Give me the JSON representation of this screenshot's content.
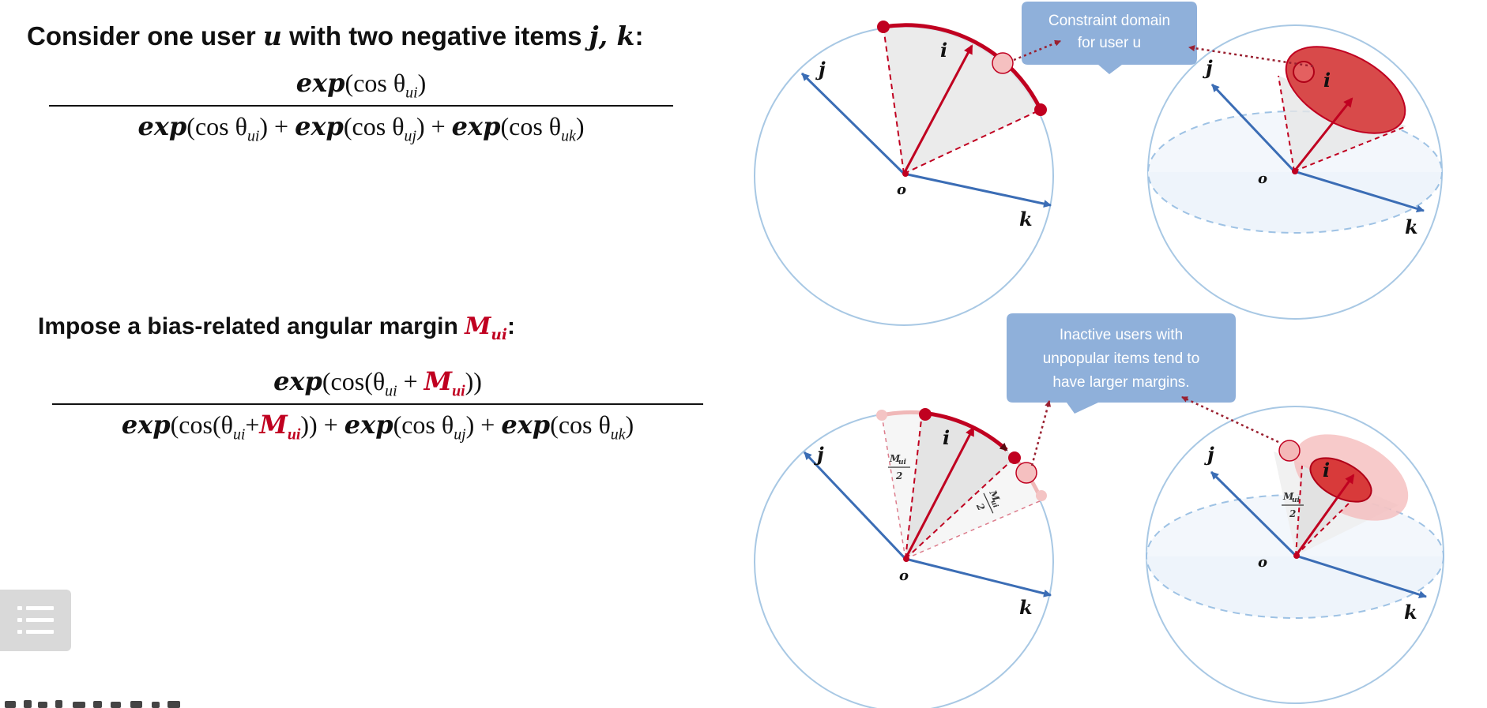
{
  "heading1": {
    "prefix": "Consider one user ",
    "var_user": "u",
    "middle": " with two negative items ",
    "var_items": "j, k",
    "suffix": ":"
  },
  "formula1": {
    "numerator": {
      "fn": "exp",
      "text": "(cos θ",
      "sub": "ui",
      "close": ")"
    },
    "denominator": [
      {
        "fn": "exp",
        "text": "(cos θ",
        "sub": "ui",
        "close": ")"
      },
      {
        "op": " + "
      },
      {
        "fn": "exp",
        "text": "(cos θ",
        "sub": "uj",
        "close": ")"
      },
      {
        "op": " + "
      },
      {
        "fn": "exp",
        "text": "(cos θ",
        "sub": "uk",
        "close": ")"
      }
    ]
  },
  "heading2": {
    "prefix": "Impose a bias-related angular margin ",
    "margin_symbol": "M",
    "margin_sub": "ui",
    "suffix": ":"
  },
  "formula2": {
    "numerator": {
      "fn": "exp",
      "open": "(cos(θ",
      "sub": "ui",
      "plus": " + ",
      "margin": "M",
      "margin_sub": "ui",
      "close": "))"
    },
    "denominator": [
      {
        "fn": "exp",
        "open": "(cos(θ",
        "sub": "ui",
        "plus": "+",
        "margin": "M",
        "margin_sub": "ui",
        "close": "))"
      },
      {
        "op": " + "
      },
      {
        "fn": "exp",
        "text": "(cos θ",
        "sub": "uj",
        "close": ")"
      },
      {
        "op": " + "
      },
      {
        "fn": "exp",
        "text": "(cos θ",
        "sub": "uk",
        "close": ")"
      }
    ]
  },
  "diagrams": {
    "callout_top": [
      "Constraint domain",
      "for user u"
    ],
    "callout_bottom": [
      "Inactive users with",
      "unpopular items tend to",
      "have larger margins."
    ],
    "vector_labels": {
      "i": "i",
      "j": "j",
      "k": "k",
      "origin": "o"
    },
    "margin_label": {
      "symbol": "M",
      "sub": "ui",
      "divisor": "2"
    }
  },
  "colors": {
    "red": "#c00020",
    "blue": "#3b6db5",
    "sphere_outline": "#a8c8e4",
    "callout_fill": "#8fb0da"
  },
  "icons": {
    "menu": "list-icon"
  }
}
